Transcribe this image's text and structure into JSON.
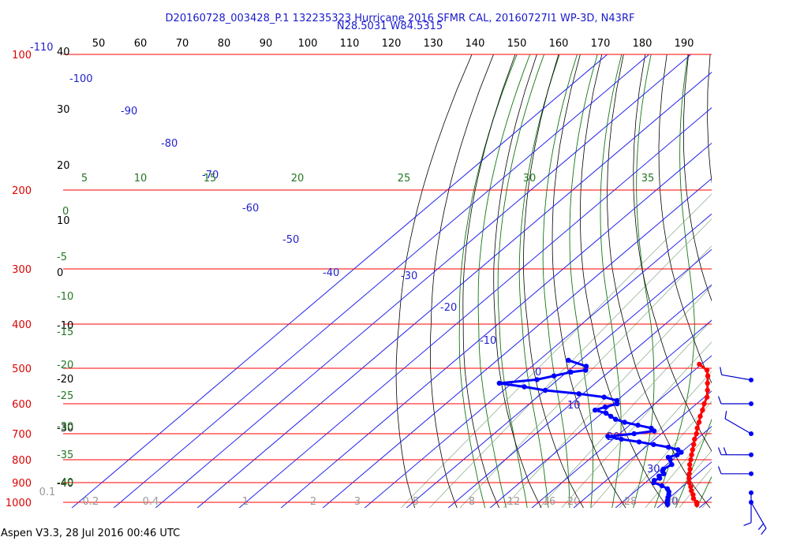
{
  "header": {
    "title_line1": "D20160728_003428_P.1 132235323 Hurricane 2016 SFMR CAL, 20160727I1 WP-3D, N43RF",
    "title_line2": "N28.5031 W84.5315"
  },
  "footer": {
    "text": "Aspen V3.3, 28 Jul 2016  00:46 UTC"
  },
  "chart_data": {
    "type": "skew-t",
    "temperature_ticks_top": [
      "50",
      "60",
      "70",
      "80",
      "90",
      "100",
      "110",
      "120",
      "130",
      "140",
      "150",
      "160",
      "170",
      "180",
      "190"
    ],
    "pressure_levels": [
      {
        "label": "100",
        "value": 100
      },
      {
        "label": "200",
        "value": 200
      },
      {
        "label": "300",
        "value": 300
      },
      {
        "label": "400",
        "value": 400
      },
      {
        "label": "500",
        "value": 500
      },
      {
        "label": "600",
        "value": 600
      },
      {
        "label": "700",
        "value": 700
      },
      {
        "label": "800",
        "value": 800
      },
      {
        "label": "900",
        "value": 900
      },
      {
        "label": "1000",
        "value": 1000
      }
    ],
    "height_labels_left": [
      "40",
      "30",
      "20",
      "10",
      "0",
      "-10",
      "-20",
      "-30",
      "-40"
    ],
    "top_left_temp_label": "-110",
    "isotherm_labels": [
      "-100",
      "-90",
      "-80",
      "-70",
      "-60",
      "-50",
      "-40",
      "-30",
      "-20",
      "-10",
      "0",
      "10",
      "20",
      "30",
      "40"
    ],
    "dry_adiabat_labels": [
      "5",
      "10",
      "15",
      "20",
      "25",
      "30",
      "35"
    ],
    "moist_adiabat_labels_left": [
      "0",
      "-5",
      "-10",
      "-15",
      "-20",
      "-25",
      "-30",
      "-35",
      "-40"
    ],
    "mixing_ratio_labels": [
      "0.1",
      "0.2",
      "0.4",
      "1",
      "2",
      "3",
      "5",
      "8",
      "12",
      "16",
      "20",
      "28",
      "40"
    ],
    "series": [
      {
        "name": "temperature",
        "color": "#ff0000",
        "points": [
          [
            1012,
            28.5
          ],
          [
            1000,
            27.8
          ],
          [
            980,
            26.0
          ],
          [
            960,
            24.8
          ],
          [
            940,
            23.3
          ],
          [
            920,
            22.0
          ],
          [
            900,
            20.5
          ],
          [
            880,
            19.2
          ],
          [
            860,
            18.0
          ],
          [
            840,
            16.9
          ],
          [
            820,
            15.5
          ],
          [
            800,
            14.4
          ],
          [
            780,
            13.2
          ],
          [
            760,
            12.0
          ],
          [
            740,
            10.8
          ],
          [
            720,
            9.5
          ],
          [
            700,
            8.4
          ],
          [
            680,
            7.0
          ],
          [
            660,
            5.8
          ],
          [
            640,
            4.4
          ],
          [
            620,
            3.2
          ],
          [
            600,
            1.8
          ],
          [
            580,
            0.6
          ],
          [
            560,
            -1.2
          ],
          [
            540,
            -3.2
          ],
          [
            520,
            -5.2
          ],
          [
            505,
            -7.0
          ],
          [
            490,
            -10.5
          ]
        ]
      },
      {
        "name": "dewpoint",
        "color": "#0000ff",
        "points": [
          [
            1012,
            21.5
          ],
          [
            1000,
            20.8
          ],
          [
            990,
            20.3
          ],
          [
            975,
            19.6
          ],
          [
            960,
            19.0
          ],
          [
            945,
            18.2
          ],
          [
            930,
            17.0
          ],
          [
            915,
            14.8
          ],
          [
            900,
            12.0
          ],
          [
            890,
            11.5
          ],
          [
            880,
            12.2
          ],
          [
            870,
            11.4
          ],
          [
            860,
            11.9
          ],
          [
            850,
            11.0
          ],
          [
            840,
            10.5
          ],
          [
            820,
            11.2
          ],
          [
            800,
            9.5
          ],
          [
            790,
            8.3
          ],
          [
            780,
            9.8
          ],
          [
            770,
            10.0
          ],
          [
            760,
            8.5
          ],
          [
            750,
            5.5
          ],
          [
            740,
            1.2
          ],
          [
            730,
            -3.0
          ],
          [
            720,
            -8.0
          ],
          [
            710,
            -12.0
          ],
          [
            700,
            -6.5
          ],
          [
            690,
            -2.5
          ],
          [
            680,
            -4.0
          ],
          [
            670,
            -8.0
          ],
          [
            660,
            -12.0
          ],
          [
            650,
            -15.0
          ],
          [
            640,
            -17.0
          ],
          [
            630,
            -19.0
          ],
          [
            620,
            -22.5
          ],
          [
            610,
            -21.0
          ],
          [
            600,
            -19.0
          ],
          [
            590,
            -20.0
          ],
          [
            580,
            -24.0
          ],
          [
            570,
            -31.0
          ],
          [
            560,
            -40.0
          ],
          [
            550,
            -46.0
          ],
          [
            540,
            -53.0
          ],
          [
            530,
            -45.0
          ],
          [
            520,
            -42.0
          ],
          [
            510,
            -39.0
          ],
          [
            505,
            -36.0
          ],
          [
            495,
            -37.0
          ],
          [
            480,
            -43.0
          ]
        ]
      }
    ],
    "wind_barbs": [
      {
        "pressure": 510,
        "direction": 280,
        "speed": 5
      },
      {
        "pressure": 600,
        "direction": 270,
        "speed": 5
      },
      {
        "pressure": 700,
        "direction": 300,
        "speed": 5
      },
      {
        "pressure": 780,
        "direction": 270,
        "speed": 10
      },
      {
        "pressure": 860,
        "direction": 270,
        "speed": 5
      },
      {
        "pressure": 950,
        "direction": 180,
        "speed": 5
      },
      {
        "pressure": 1000,
        "direction": 150,
        "speed": 10
      }
    ]
  }
}
